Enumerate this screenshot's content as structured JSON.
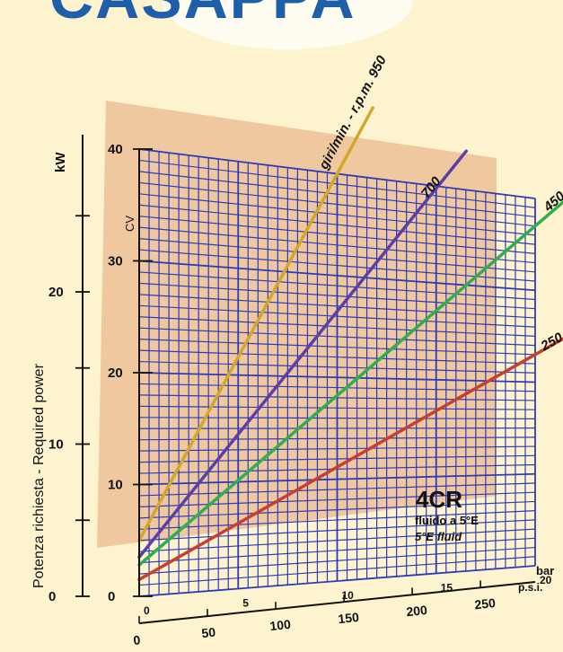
{
  "logo": {
    "text": "CASAPPA",
    "color": "#1f5ea8"
  },
  "colors": {
    "background": "#fdf4cf",
    "shade": "#e9b98f",
    "grid": "#2e3bb8",
    "axis": "#111111"
  },
  "chart_data": {
    "type": "line",
    "model": "4CR",
    "fluid_it": "fluido a 5°E",
    "fluid_en": "5°E fluid",
    "y_outer_label": "Potenza richiesta - Required power",
    "y_kw_unit": "kW",
    "y_cv_unit": "CV",
    "x_bar_unit": "bar",
    "x_psi_unit": "p.s.i.",
    "rpm_title": "giri/min. - r.p.m.",
    "x_bar_ticks": [
      "0",
      "5",
      "10",
      "15",
      "20"
    ],
    "x_psi_ticks": [
      "0",
      "50",
      "100",
      "150",
      "200",
      "250"
    ],
    "y_cv_ticks": [
      "0",
      "10",
      "20",
      "30",
      "40"
    ],
    "y_kw_ticks": [
      "0",
      "10",
      "20"
    ],
    "xlim_bar": [
      0,
      20
    ],
    "ylim_cv": [
      0,
      40
    ],
    "grid": true,
    "series": [
      {
        "name": "950",
        "color": "#d4a62a",
        "x": [
          0,
          10
        ],
        "y": [
          5.0,
          40.0
        ]
      },
      {
        "name": "700",
        "color": "#5b3fa8",
        "x": [
          0,
          14
        ],
        "y": [
          3.5,
          37.0
        ]
      },
      {
        "name": "450",
        "color": "#2fae4a",
        "x": [
          0,
          20
        ],
        "y": [
          2.8,
          37.0
        ]
      },
      {
        "name": "250",
        "color": "#c7402c",
        "x": [
          0,
          20
        ],
        "y": [
          1.5,
          23.0
        ]
      }
    ]
  }
}
